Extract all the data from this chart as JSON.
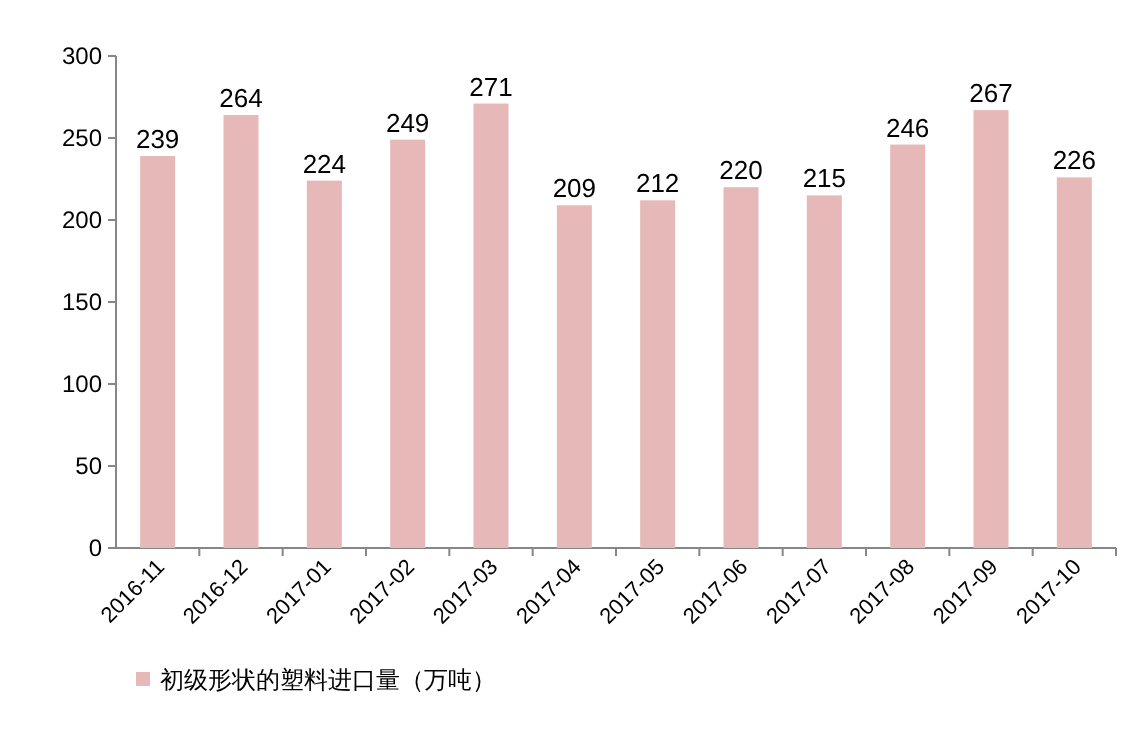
{
  "chart_data": {
    "type": "bar",
    "categories": [
      "2016-11",
      "2016-12",
      "2017-01",
      "2017-02",
      "2017-03",
      "2017-04",
      "2017-05",
      "2017-06",
      "2017-07",
      "2017-08",
      "2017-09",
      "2017-10"
    ],
    "series": [
      {
        "name": "初级形状的塑料进口量（万吨）",
        "color": "#e6b9b8",
        "values": [
          239,
          264,
          224,
          249,
          271,
          209,
          212,
          220,
          215,
          246,
          267,
          226
        ]
      }
    ],
    "ylim": [
      0,
      300
    ],
    "yticks": [
      0,
      50,
      100,
      150,
      200,
      250,
      300
    ],
    "data_labels": true,
    "legend": "bottom"
  }
}
